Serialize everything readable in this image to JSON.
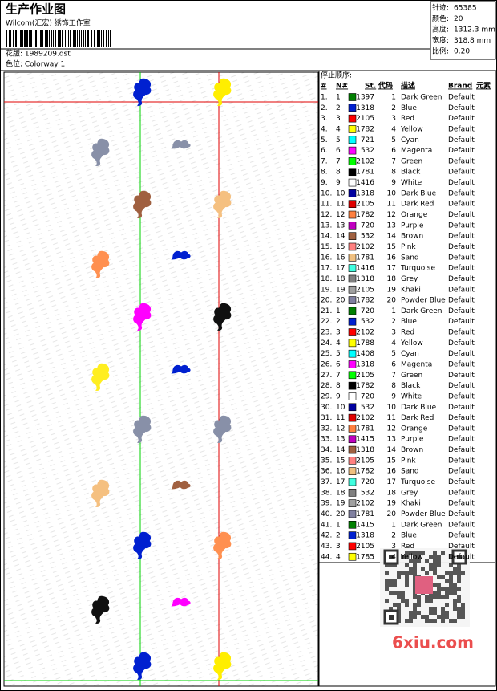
{
  "header": {
    "title": "生产作业图",
    "subtitle": "Wilcom(汇宏) 绣饰工作室",
    "design": "花版: 1989209.dst",
    "colorway": "色位: Colorway 1"
  },
  "stats": [
    {
      "label": "针迹:",
      "value": "65385"
    },
    {
      "label": "颜色:",
      "value": "20"
    },
    {
      "label": "高度:",
      "value": "1312.3 mm"
    },
    {
      "label": "宽度:",
      "value": "318.8 mm"
    },
    {
      "label": "比例:",
      "value": "0.20"
    }
  ],
  "table": {
    "title": "停止顺序:",
    "columns": [
      "#",
      "N#",
      "St.",
      "代码",
      "描述",
      "Brand",
      "元素"
    ],
    "rows": [
      [
        "1.",
        1,
        1397,
        1,
        "Dark Green",
        "Default"
      ],
      [
        "2.",
        2,
        1318,
        2,
        "Blue",
        "Default"
      ],
      [
        "3.",
        3,
        2105,
        3,
        "Red",
        "Default"
      ],
      [
        "4.",
        4,
        1782,
        4,
        "Yellow",
        "Default"
      ],
      [
        "5.",
        5,
        721,
        5,
        "Cyan",
        "Default"
      ],
      [
        "6.",
        6,
        532,
        6,
        "Magenta",
        "Default"
      ],
      [
        "7.",
        7,
        2102,
        7,
        "Green",
        "Default"
      ],
      [
        "8.",
        8,
        1781,
        8,
        "Black",
        "Default"
      ],
      [
        "9.",
        9,
        1416,
        9,
        "White",
        "Default"
      ],
      [
        "10.",
        10,
        1318,
        10,
        "Dark Blue",
        "Default"
      ],
      [
        "11.",
        11,
        2105,
        11,
        "Dark Red",
        "Default"
      ],
      [
        "12.",
        12,
        1782,
        12,
        "Orange",
        "Default"
      ],
      [
        "13.",
        13,
        720,
        13,
        "Purple",
        "Default"
      ],
      [
        "14.",
        14,
        532,
        14,
        "Brown",
        "Default"
      ],
      [
        "15.",
        15,
        2102,
        15,
        "Pink",
        "Default"
      ],
      [
        "16.",
        16,
        1781,
        16,
        "Sand",
        "Default"
      ],
      [
        "17.",
        17,
        1416,
        17,
        "Turquoise",
        "Default"
      ],
      [
        "18.",
        18,
        1318,
        18,
        "Grey",
        "Default"
      ],
      [
        "19.",
        19,
        2105,
        19,
        "Khaki",
        "Default"
      ],
      [
        "20.",
        20,
        1782,
        20,
        "Powder Blue",
        "Default"
      ],
      [
        "21.",
        1,
        720,
        1,
        "Dark Green",
        "Default"
      ],
      [
        "22.",
        2,
        532,
        2,
        "Blue",
        "Default"
      ],
      [
        "23.",
        3,
        2102,
        3,
        "Red",
        "Default"
      ],
      [
        "24.",
        4,
        1788,
        4,
        "Yellow",
        "Default"
      ],
      [
        "25.",
        5,
        1408,
        5,
        "Cyan",
        "Default"
      ],
      [
        "26.",
        6,
        1318,
        6,
        "Magenta",
        "Default"
      ],
      [
        "27.",
        7,
        2105,
        7,
        "Green",
        "Default"
      ],
      [
        "28.",
        8,
        1782,
        8,
        "Black",
        "Default"
      ],
      [
        "29.",
        9,
        720,
        9,
        "White",
        "Default"
      ],
      [
        "30.",
        10,
        532,
        10,
        "Dark Blue",
        "Default"
      ],
      [
        "31.",
        11,
        2102,
        11,
        "Dark Red",
        "Default"
      ],
      [
        "32.",
        12,
        1781,
        12,
        "Orange",
        "Default"
      ],
      [
        "33.",
        13,
        1415,
        13,
        "Purple",
        "Default"
      ],
      [
        "34.",
        14,
        1318,
        14,
        "Brown",
        "Default"
      ],
      [
        "35.",
        15,
        2105,
        15,
        "Pink",
        "Default"
      ],
      [
        "36.",
        16,
        1782,
        16,
        "Sand",
        "Default"
      ],
      [
        "37.",
        17,
        720,
        17,
        "Turquoise",
        "Default"
      ],
      [
        "38.",
        18,
        532,
        18,
        "Grey",
        "Default"
      ],
      [
        "39.",
        19,
        2102,
        19,
        "Khaki",
        "Default"
      ],
      [
        "40.",
        20,
        1781,
        20,
        "Powder Blue",
        "Default"
      ],
      [
        "41.",
        1,
        1415,
        1,
        "Dark Green",
        "Default"
      ],
      [
        "42.",
        2,
        1318,
        2,
        "Blue",
        "Default"
      ],
      [
        "43.",
        3,
        2105,
        3,
        "Red",
        "Default"
      ],
      [
        "44.",
        4,
        1785,
        4,
        "Yellow",
        "Default"
      ]
    ],
    "swatches": [
      "#008000",
      "#0020d0",
      "#ff0000",
      "#ffff00",
      "#00ffff",
      "#ff00ff",
      "#00ff00",
      "#000000",
      "#ffffff",
      "#0000a0",
      "#e00000",
      "#ff8040",
      "#c000c0",
      "#a06040",
      "#ff8080",
      "#f0c080",
      "#40ffe0",
      "#808080",
      "#a0a0a0",
      "#8080a0",
      "#008000",
      "#0020d0",
      "#ff0000",
      "#ffff00",
      "#00ffff",
      "#ff00ff",
      "#00ff00",
      "#000000",
      "#ffffff",
      "#0000a0",
      "#e00000",
      "#ff8040",
      "#c000c0",
      "#a06040",
      "#ff8080",
      "#f0c080",
      "#40ffe0",
      "#808080",
      "#a0a0a0",
      "#8080a0",
      "#008000",
      "#0020d0",
      "#ff0000",
      "#ffff00"
    ]
  },
  "watermark": "6xiu.com"
}
